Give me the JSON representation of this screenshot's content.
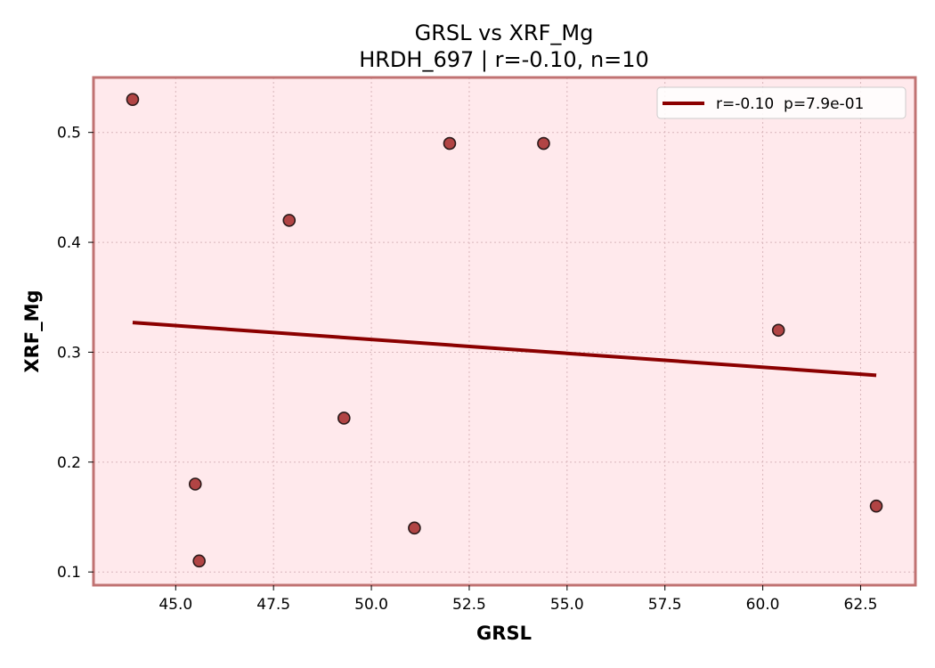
{
  "chart_data": {
    "type": "scatter",
    "title": "GRSL vs XRF_Mg",
    "subtitle": "HRDH_697 | r=-0.10, n=10",
    "xlabel": "GRSL",
    "ylabel": "XRF_Mg",
    "xlim": [
      42.9,
      63.9
    ],
    "ylim": [
      0.088,
      0.55
    ],
    "xticks": [
      45.0,
      47.5,
      50.0,
      52.5,
      55.0,
      57.5,
      60.0,
      62.5
    ],
    "xtick_labels": [
      "45.0",
      "47.5",
      "50.0",
      "52.5",
      "55.0",
      "57.5",
      "60.0",
      "62.5"
    ],
    "yticks": [
      0.1,
      0.2,
      0.3,
      0.4,
      0.5
    ],
    "ytick_labels": [
      "0.1",
      "0.2",
      "0.3",
      "0.4",
      "0.5"
    ],
    "grid": true,
    "points": [
      {
        "x": 43.9,
        "y": 0.53
      },
      {
        "x": 45.5,
        "y": 0.18
      },
      {
        "x": 45.6,
        "y": 0.11
      },
      {
        "x": 47.9,
        "y": 0.42
      },
      {
        "x": 49.3,
        "y": 0.24
      },
      {
        "x": 51.1,
        "y": 0.14
      },
      {
        "x": 52.0,
        "y": 0.49
      },
      {
        "x": 54.4,
        "y": 0.49
      },
      {
        "x": 60.4,
        "y": 0.32
      },
      {
        "x": 62.9,
        "y": 0.16
      }
    ],
    "trendline": {
      "x": [
        43.9,
        62.9
      ],
      "y": [
        0.327,
        0.279
      ]
    },
    "legend": {
      "placement": "top-right",
      "label": "r=-0.10  p=7.9e-01"
    },
    "colors": {
      "plot_background": "#ffe9ec",
      "frame": "#c07272",
      "points_fill": "#a83232",
      "points_edge": "#2b1a1a",
      "trendline": "#8b0000",
      "grid": "#d9b6bb"
    }
  }
}
